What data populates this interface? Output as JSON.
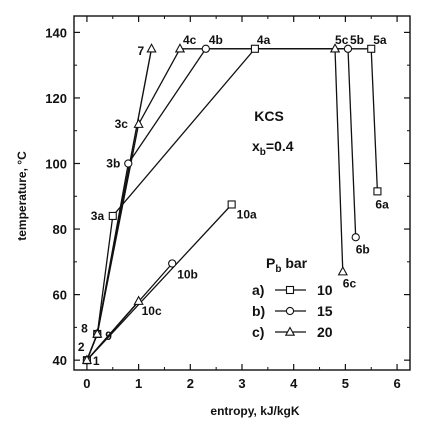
{
  "chart_data": {
    "type": "line",
    "xlabel": "entropy, kJ/kgK",
    "ylabel": "temperature, °C",
    "xlim": [
      -0.25,
      6.25
    ],
    "ylim": [
      37,
      145
    ],
    "xticks": [
      0,
      1,
      2,
      3,
      4,
      5,
      6
    ],
    "yticks": [
      40,
      60,
      80,
      100,
      120,
      140
    ],
    "grid": false,
    "annotations": {
      "system": "KCS",
      "xb": "x",
      "xb_sub": "b",
      "xb_val": "=0.4"
    },
    "legend": {
      "title": "P",
      "title_sub": "b",
      "title_unit": " bar",
      "entries": [
        {
          "key": "a)",
          "value": "10",
          "marker": "square"
        },
        {
          "key": "b)",
          "value": "15",
          "marker": "circle"
        },
        {
          "key": "c)",
          "value": "20",
          "marker": "triangle"
        }
      ]
    },
    "series": [
      {
        "marker": "square",
        "points": [
          [
            0,
            40
          ],
          [
            0.2,
            48
          ],
          [
            0.5,
            84
          ],
          [
            3.25,
            135
          ],
          [
            5.5,
            135
          ],
          [
            5.62,
            91.5
          ]
        ],
        "wf": [
          [
            2.8,
            87.5
          ],
          [
            0,
            40
          ]
        ]
      },
      {
        "marker": "circle",
        "points": [
          [
            0,
            40
          ],
          [
            0.2,
            48
          ],
          [
            0.8,
            100
          ],
          [
            2.3,
            135
          ],
          [
            5.05,
            135
          ],
          [
            5.2,
            77.5
          ]
        ],
        "wf": [
          [
            1.65,
            69.5
          ],
          [
            0,
            40
          ]
        ]
      },
      {
        "marker": "triangle",
        "points": [
          [
            0,
            40
          ],
          [
            0.2,
            48
          ],
          [
            1,
            112
          ],
          [
            1.8,
            135
          ],
          [
            4.8,
            135
          ],
          [
            4.95,
            67
          ]
        ],
        "wf": [
          [
            1.0,
            58
          ],
          [
            0,
            40
          ]
        ]
      }
    ],
    "common_path": [
      [
        0,
        40
      ],
      [
        0.2,
        48
      ],
      [
        1.25,
        135
      ]
    ],
    "labels": [
      {
        "text": "1",
        "at": [
          0,
          40
        ],
        "dx": 6,
        "dy": 5
      },
      {
        "text": "2",
        "at": [
          0,
          44
        ],
        "dx": -9,
        "dy": 4
      },
      {
        "text": "8",
        "at": [
          0.1,
          49
        ],
        "dx": -11,
        "dy": 2
      },
      {
        "text": "9",
        "at": [
          0.2,
          48
        ],
        "dx": 8,
        "dy": 6
      },
      {
        "text": "3a",
        "at": [
          0.5,
          84
        ],
        "dx": -22,
        "dy": 4
      },
      {
        "text": "3b",
        "at": [
          0.8,
          100
        ],
        "dx": -22,
        "dy": 4
      },
      {
        "text": "3c",
        "at": [
          1,
          112
        ],
        "dx": -24,
        "dy": 4
      },
      {
        "text": "7",
        "at": [
          1.25,
          135
        ],
        "dx": -14,
        "dy": 6
      },
      {
        "text": "4c",
        "at": [
          1.8,
          135
        ],
        "dx": 3,
        "dy": -5
      },
      {
        "text": "4b",
        "at": [
          2.3,
          135
        ],
        "dx": 3,
        "dy": -5
      },
      {
        "text": "4a",
        "at": [
          3.25,
          135
        ],
        "dx": 2,
        "dy": -5
      },
      {
        "text": "5c",
        "at": [
          4.8,
          135
        ],
        "dx": 0,
        "dy": -5
      },
      {
        "text": "5b",
        "at": [
          5.05,
          135
        ],
        "dx": 2,
        "dy": -5
      },
      {
        "text": "5a",
        "at": [
          5.5,
          135
        ],
        "dx": 2,
        "dy": -5
      },
      {
        "text": "6a",
        "at": [
          5.62,
          91.5
        ],
        "dx": -2,
        "dy": 17
      },
      {
        "text": "6b",
        "at": [
          5.2,
          77.5
        ],
        "dx": 0,
        "dy": 16
      },
      {
        "text": "6c",
        "at": [
          4.95,
          67
        ],
        "dx": 0,
        "dy": 16
      },
      {
        "text": "10a",
        "at": [
          2.8,
          87.5
        ],
        "dx": 5,
        "dy": 14
      },
      {
        "text": "10b",
        "at": [
          1.65,
          69.5
        ],
        "dx": 5,
        "dy": 15
      },
      {
        "text": "10c",
        "at": [
          1.0,
          58
        ],
        "dx": 3,
        "dy": 14
      }
    ]
  }
}
